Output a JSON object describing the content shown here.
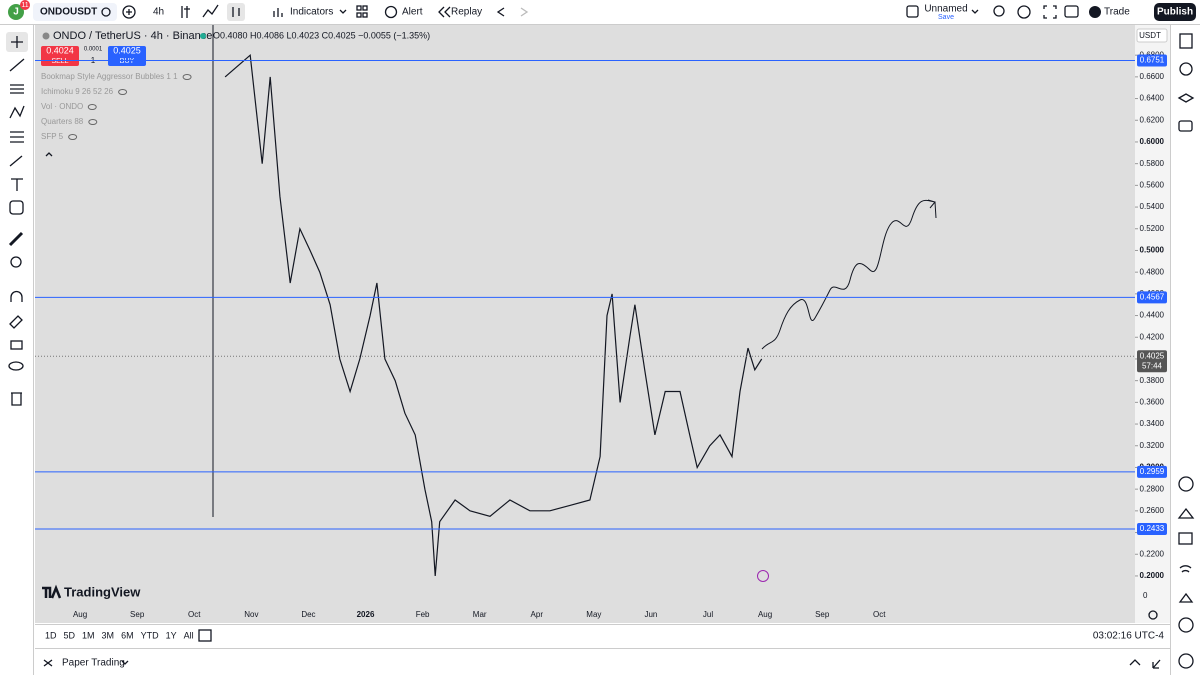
{
  "top_bar": {
    "avatar": "J",
    "badge": "11",
    "symbol": "ONDOUSDT",
    "interval": "4h",
    "indicators": "Indicators",
    "alert": "Alert",
    "replay": "Replay",
    "layout_name": "Unnamed",
    "save": "Save",
    "trade": "Trade",
    "publish": "Publish"
  },
  "legend": {
    "symbol": "ONDO / TetherUS · 4h · Binance",
    "ohlc": "O0.4080 H0.4086 L0.4023 C0.4025 −0.0055 (−1.35%)",
    "sell_price": "0.4024",
    "sell": "SELL",
    "spread": "0.0001",
    "quantity": "1",
    "buy_price": "0.4025",
    "buy": "BUY",
    "indicators": [
      "Bookmap Style Aggressor Bubbles 1 1",
      "Ichimoku 9 26 52 26",
      "Vol · ONDO",
      "Quarters 88",
      "SFP 5"
    ]
  },
  "chart": {
    "currency": "USDT",
    "watermark": "TradingView",
    "axis_bottom_label": "0",
    "ylim": [
      0.1935,
      0.7078
    ],
    "yticks": [
      {
        "value": 0.2,
        "label": "0.2000"
      },
      {
        "value": 0.22,
        "label": "0.2200"
      },
      {
        "value": 0.24,
        "label": "0.2400"
      },
      {
        "value": 0.26,
        "label": "0.2600"
      },
      {
        "value": 0.28,
        "label": "0.2800"
      },
      {
        "value": 0.3,
        "label": "0.3000"
      },
      {
        "value": 0.32,
        "label": "0.3200"
      },
      {
        "value": 0.34,
        "label": "0.3400"
      },
      {
        "value": 0.36,
        "label": "0.3600"
      },
      {
        "value": 0.38,
        "label": "0.3800"
      },
      {
        "value": 0.4,
        "label": "0.4000"
      },
      {
        "value": 0.42,
        "label": "0.4200"
      },
      {
        "value": 0.44,
        "label": "0.4400"
      },
      {
        "value": 0.46,
        "label": "0.4600"
      },
      {
        "value": 0.48,
        "label": "0.4800"
      },
      {
        "value": 0.5,
        "label": "0.5000"
      },
      {
        "value": 0.52,
        "label": "0.5200"
      },
      {
        "value": 0.54,
        "label": "0.5400"
      },
      {
        "value": 0.56,
        "label": "0.5600"
      },
      {
        "value": 0.58,
        "label": "0.5800"
      },
      {
        "value": 0.6,
        "label": "0.6000"
      },
      {
        "value": 0.62,
        "label": "0.6200"
      },
      {
        "value": 0.64,
        "label": "0.6400"
      },
      {
        "value": 0.66,
        "label": "0.6600"
      },
      {
        "value": 0.68,
        "label": "0.6800"
      }
    ],
    "horizontal_lines": [
      0.6751,
      0.4567,
      0.2959,
      0.2433
    ],
    "last_price": 0.4025,
    "countdown": "57:44",
    "xlim": [
      -0.79,
      18.48
    ],
    "months": [
      "Aug",
      "Sep",
      "Oct",
      "Nov",
      "Dec",
      "2026",
      "Feb",
      "Mar",
      "Apr",
      "May",
      "Jun",
      "Jul",
      "Aug",
      "Sep",
      "Oct"
    ],
    "price": {
      "x": [
        2.54,
        2.98,
        3.19,
        3.33,
        3.5,
        3.68,
        3.85,
        4.03,
        4.2,
        4.38,
        4.55,
        4.73,
        4.9,
        5.08,
        5.2,
        5.34,
        5.52,
        5.69,
        5.87,
        6.04,
        6.16,
        6.22,
        6.3,
        6.57,
        6.83,
        7.18,
        7.53,
        7.88,
        8.23,
        8.58,
        8.93,
        9.11,
        9.23,
        9.32,
        9.46,
        9.63,
        9.72,
        9.89,
        10.07,
        10.25,
        10.51,
        10.68,
        10.81,
        11.03,
        11.21,
        11.42,
        11.56,
        11.7,
        11.82,
        11.94
      ],
      "values": [
        0.66,
        0.68,
        0.58,
        0.66,
        0.55,
        0.47,
        0.52,
        0.5,
        0.48,
        0.45,
        0.4,
        0.37,
        0.4,
        0.44,
        0.47,
        0.4,
        0.38,
        0.35,
        0.33,
        0.28,
        0.25,
        0.2,
        0.25,
        0.27,
        0.26,
        0.255,
        0.27,
        0.26,
        0.26,
        0.265,
        0.27,
        0.31,
        0.44,
        0.46,
        0.36,
        0.42,
        0.45,
        0.39,
        0.33,
        0.37,
        0.37,
        0.33,
        0.3,
        0.32,
        0.33,
        0.31,
        0.37,
        0.41,
        0.39,
        0.4
      ]
    }
  },
  "bottom_bar": {
    "ranges": [
      "1D",
      "5D",
      "1M",
      "3M",
      "6M",
      "YTD",
      "1Y",
      "All"
    ],
    "time": "03:02:16 UTC-4",
    "paper_trading": "Paper Trading"
  }
}
